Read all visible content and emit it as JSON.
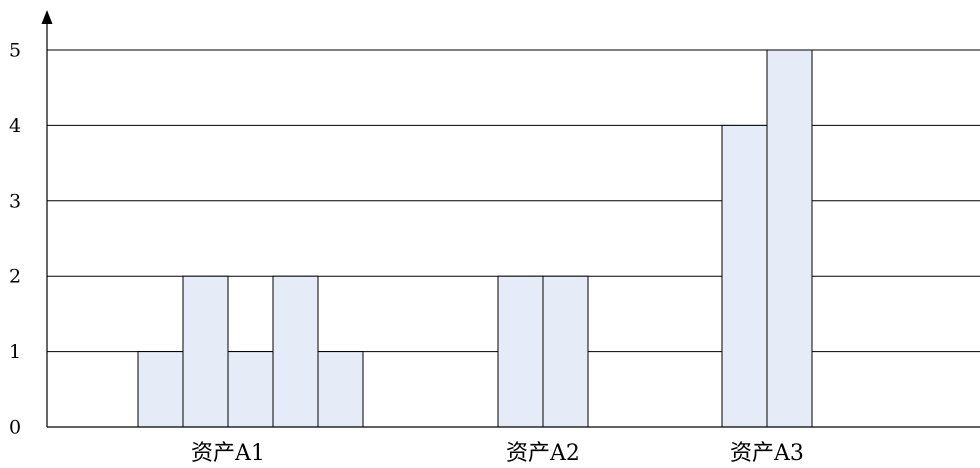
{
  "chart_data": {
    "type": "bar",
    "title": "",
    "xlabel": "",
    "ylabel": "",
    "ylim": [
      0,
      5
    ],
    "yticks": [
      "0",
      "1",
      "2",
      "3",
      "4",
      "5"
    ],
    "grid": true,
    "legend": "none",
    "groups": [
      {
        "label": "资产A1",
        "values": [
          1,
          2,
          1,
          2,
          1
        ]
      },
      {
        "label": "资产A2",
        "values": [
          2,
          2
        ]
      },
      {
        "label": "资产A3",
        "values": [
          4,
          5
        ]
      }
    ],
    "colors": {
      "bar_fill": "#e6ecf7",
      "bar_stroke": "#000000",
      "grid": "#000000"
    }
  }
}
